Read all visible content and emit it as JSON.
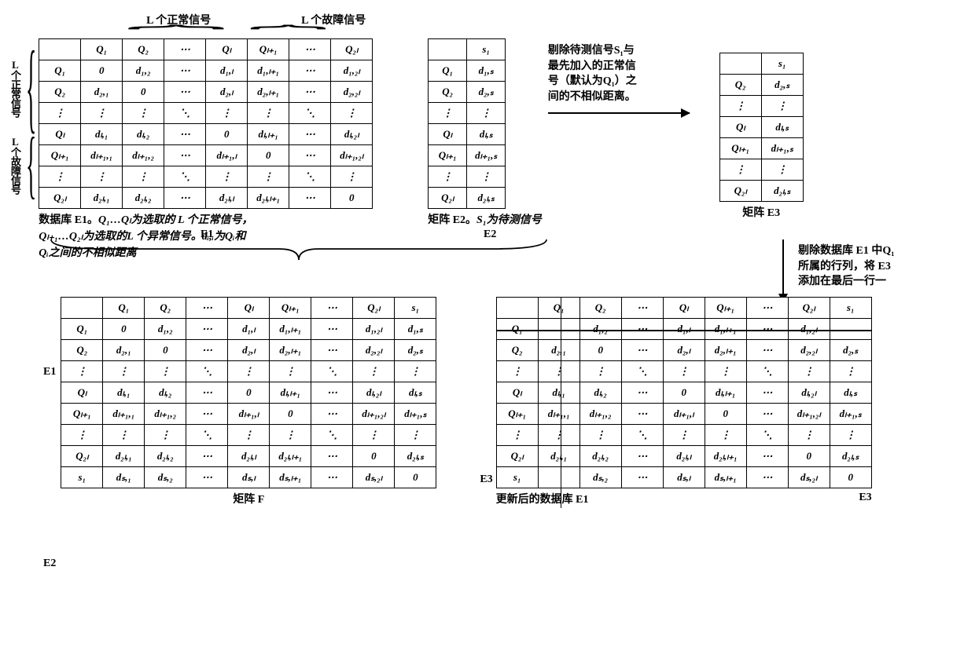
{
  "toplabels": {
    "normal": "L 个正常信号",
    "fault": "L 个故障信号"
  },
  "sidelabels": {
    "normal": "L个正常信号",
    "fault": "L个故障信号"
  },
  "note1_l1": "剔除待测信号S₁与",
  "note1_l2": "最先加入的正常信",
  "note1_l3": "号（默认为Q₁）之",
  "note1_l4": "间的不相似距离。",
  "note2_l1": "剔除数据库 E1 中Q₁",
  "note2_l2": "所属的行列，将 E3",
  "note2_l3": "添加在最后一行一",
  "capE1_l1_a": "数据库 E1。",
  "capE1_l1_b": "Q₁…Qₗ为选取的 L 个正常信号，",
  "capE1_l2": "Qₗ₊₁…Q₂ₗ为选取的L 个异常信号。dᵢ,ᵢ为Qᵢ和",
  "capE1_l3": "Qᵢ之间的不相似距离",
  "capE2_a": "矩阵 E2。",
  "capE2_b": "S₁为待测信号",
  "capE3": "矩阵 E3",
  "capF": "矩阵 F",
  "capE1u": "更新后的数据库 E1",
  "lblE1": "E1",
  "lblE2": "E2",
  "lblE3": "E3",
  "E1": {
    "cols": [
      "",
      "Q₁",
      "Q₂",
      "⋯",
      "Qₗ",
      "Qₗ₊₁",
      "⋯",
      "Q₂ₗ"
    ],
    "rows": [
      [
        "Q₁",
        "0",
        "d₁,₂",
        "⋯",
        "d₁,ₗ",
        "d₁,ₗ₊₁",
        "⋯",
        "d₁,₂ₗ"
      ],
      [
        "Q₂",
        "d₂,₁",
        "0",
        "⋯",
        "d₂,ₗ",
        "d₂,ₗ₊₁",
        "⋯",
        "d₂,₂ₗ"
      ],
      [
        "⋮",
        "⋮",
        "⋮",
        "⋱",
        "⋮",
        "⋮",
        "⋱",
        "⋮"
      ],
      [
        "Qₗ",
        "dₗ,₁",
        "dₗ,₂",
        "⋯",
        "0",
        "dₗ,ₗ₊₁",
        "⋯",
        "dₗ,₂ₗ"
      ],
      [
        "Qₗ₊₁",
        "dₗ₊₁,₁",
        "dₗ₊₁,₂",
        "⋯",
        "dₗ₊₁,ₗ",
        "0",
        "⋯",
        "dₗ₊₁,₂ₗ"
      ],
      [
        "⋮",
        "⋮",
        "⋮",
        "⋱",
        "⋮",
        "⋮",
        "⋱",
        "⋮"
      ],
      [
        "Q₂ₗ",
        "d₂ₗ,₁",
        "d₂ₗ,₂",
        "⋯",
        "d₂ₗ,ₗ",
        "d₂ₗ,ₗ₊₁",
        "⋯",
        "0"
      ]
    ]
  },
  "E2": {
    "cols": [
      "",
      "s₁"
    ],
    "rows": [
      [
        "Q₁",
        "d₁,ₛ"
      ],
      [
        "Q₂",
        "d₂,ₛ"
      ],
      [
        "⋮",
        "⋮"
      ],
      [
        "Qₗ",
        "dₗ,ₛ"
      ],
      [
        "Qₗ₊₁",
        "dₗ₊₁,ₛ"
      ],
      [
        "⋮",
        "⋮"
      ],
      [
        "Q₂ₗ",
        "d₂ₗ,ₛ"
      ]
    ]
  },
  "E3": {
    "cols": [
      "",
      "s₁"
    ],
    "rows": [
      [
        "Q₂",
        "d₂,ₛ"
      ],
      [
        "⋮",
        "⋮"
      ],
      [
        "Qₗ",
        "dₗ,ₛ"
      ],
      [
        "Qₗ₊₁",
        "dₗ₊₁,ₛ"
      ],
      [
        "⋮",
        "⋮"
      ],
      [
        "Q₂ₗ",
        "d₂ₗ,ₛ"
      ]
    ]
  },
  "F": {
    "cols": [
      "",
      "Q₁",
      "Q₂",
      "⋯",
      "Qₗ",
      "Qₗ₊₁",
      "⋯",
      "Q₂ₗ",
      "s₁"
    ],
    "rows": [
      [
        "Q₁",
        "0",
        "d₁,₂",
        "⋯",
        "d₁,ₗ",
        "d₁,ₗ₊₁",
        "⋯",
        "d₁,₂ₗ",
        "d₁,ₛ"
      ],
      [
        "Q₂",
        "d₂,₁",
        "0",
        "⋯",
        "d₂,ₗ",
        "d₂,ₗ₊₁",
        "⋯",
        "d₂,₂ₗ",
        "d₂,ₛ"
      ],
      [
        "⋮",
        "⋮",
        "⋮",
        "⋱",
        "⋮",
        "⋮",
        "⋱",
        "⋮",
        "⋮"
      ],
      [
        "Qₗ",
        "dₗ,₁",
        "dₗ,₂",
        "⋯",
        "0",
        "dₗ,ₗ₊₁",
        "⋯",
        "dₗ,₂ₗ",
        "dₗ,ₛ"
      ],
      [
        "Qₗ₊₁",
        "dₗ₊₁,₁",
        "dₗ₊₁,₂",
        "⋯",
        "dₗ₊₁,ₗ",
        "0",
        "⋯",
        "dₗ₊₁,₂ₗ",
        "dₗ₊₁,ₛ"
      ],
      [
        "⋮",
        "⋮",
        "⋮",
        "⋱",
        "⋮",
        "⋮",
        "⋱",
        "⋮",
        "⋮"
      ],
      [
        "Q₂ₗ",
        "d₂ₗ,₁",
        "d₂ₗ,₂",
        "⋯",
        "d₂ₗ,ₗ",
        "d₂ₗ,ₗ₊₁",
        "⋯",
        "0",
        "d₂ₗ,ₛ"
      ],
      [
        "s₁",
        "dₛ,₁",
        "dₛ,₂",
        "⋯",
        "dₛ,ₗ",
        "dₛ,ₗ₊₁",
        "⋯",
        "dₛ,₂ₗ",
        "0"
      ]
    ]
  },
  "E1u": {
    "cols": [
      "",
      "Q₁",
      "Q₂",
      "⋯",
      "Qₗ",
      "Qₗ₊₁",
      "⋯",
      "Q₂ₗ",
      "s₁"
    ],
    "rows": [
      [
        "Q₁",
        "",
        "d₁,₂",
        "⋯",
        "d₁,ₗ",
        "d₁,ₗ₊₁",
        "⋯",
        "d₁,₂ₗ",
        ""
      ],
      [
        "Q₂",
        "d₂,₁",
        "0",
        "⋯",
        "d₂,ₗ",
        "d₂,ₗ₊₁",
        "⋯",
        "d₂,₂ₗ",
        "d₂,ₛ"
      ],
      [
        "⋮",
        "⋮",
        "⋮",
        "⋱",
        "⋮",
        "⋮",
        "⋱",
        "⋮",
        "⋮"
      ],
      [
        "Qₗ",
        "dₗ,₁",
        "dₗ,₂",
        "⋯",
        "0",
        "dₗ,ₗ₊₁",
        "⋯",
        "dₗ,₂ₗ",
        "dₗ,ₛ"
      ],
      [
        "Qₗ₊₁",
        "dₗ₊₁,₁",
        "dₗ₊₁,₂",
        "⋯",
        "dₗ₊₁,ₗ",
        "0",
        "⋯",
        "dₗ₊₁,₂ₗ",
        "dₗ₊₁,ₛ"
      ],
      [
        "⋮",
        "⋮",
        "⋮",
        "⋱",
        "⋮",
        "⋮",
        "⋱",
        "⋮",
        "⋮"
      ],
      [
        "Q₂ₗ",
        "d₂ₗ,₁",
        "d₂ₗ,₂",
        "⋯",
        "d₂ₗ,ₗ",
        "d₂ₗ,ₗ₊₁",
        "⋯",
        "0",
        "d₂ₗ,ₛ"
      ],
      [
        "s₁",
        "",
        "dₛ,₂",
        "⋯",
        "dₛ,ₗ",
        "dₛ,ₗ₊₁",
        "⋯",
        "dₛ,₂ₗ",
        "0"
      ]
    ]
  }
}
